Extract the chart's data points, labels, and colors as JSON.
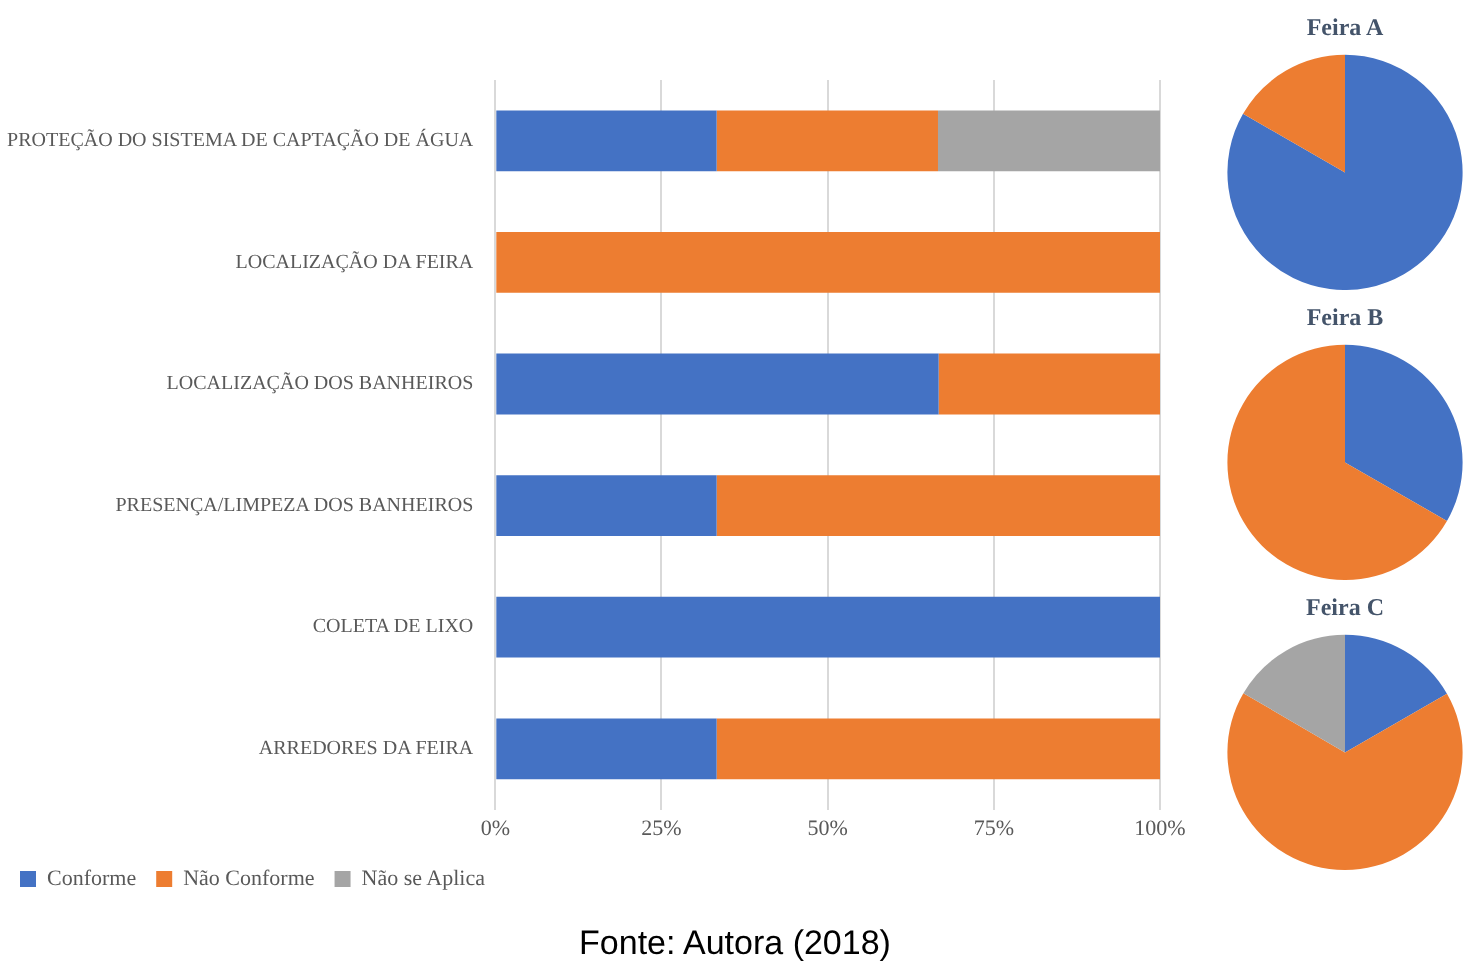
{
  "chart_data": [
    {
      "type": "bar",
      "orientation": "horizontal",
      "stacked": true,
      "categories": [
        "PROTEÇÃO DO SISTEMA DE CAPTAÇÃO DE ÁGUA",
        "LOCALIZAÇÃO DA FEIRA",
        "LOCALIZAÇÃO DOS BANHEIROS",
        "PRESENÇA/LIMPEZA DOS BANHEIROS",
        "COLETA DE LIXO",
        "ARREDORES DA FEIRA"
      ],
      "series": [
        {
          "name": "Conforme",
          "color": "#4472c4",
          "values": [
            33.3,
            0,
            66.7,
            33.3,
            100,
            33.3
          ]
        },
        {
          "name": "Não Conforme",
          "color": "#ed7d31",
          "values": [
            33.3,
            100,
            33.3,
            66.7,
            0,
            66.7
          ]
        },
        {
          "name": "Não se Aplica",
          "color": "#a5a5a5",
          "values": [
            33.4,
            0,
            0,
            0,
            0,
            0
          ]
        }
      ],
      "xlim": [
        0,
        100
      ],
      "xticks": [
        {
          "value": 0,
          "label": "0%"
        },
        {
          "value": 25,
          "label": "25%"
        },
        {
          "value": 50,
          "label": "50%"
        },
        {
          "value": 75,
          "label": "75%"
        },
        {
          "value": 100,
          "label": "100%"
        }
      ],
      "grid": "x",
      "legend": "bottom left",
      "annotations": [
        "Fonte: Autora (2018)"
      ]
    },
    {
      "type": "pie",
      "title": "Feira A",
      "categories": [
        null,
        null
      ],
      "values": [
        83.3,
        16.7
      ],
      "colors": [
        "#4472c4",
        "#ed7d31"
      ]
    },
    {
      "type": "pie",
      "title": "Feira B",
      "categories": [
        null,
        null
      ],
      "values": [
        33.3,
        66.7
      ],
      "colors": [
        "#4472c4",
        "#ed7d31"
      ]
    },
    {
      "type": "pie",
      "title": "Feira C",
      "categories": [
        null,
        null,
        null
      ],
      "values": [
        16.7,
        66.7,
        16.6
      ],
      "colors": [
        "#4472c4",
        "#ed7d31",
        "#a5a5a5"
      ]
    }
  ]
}
